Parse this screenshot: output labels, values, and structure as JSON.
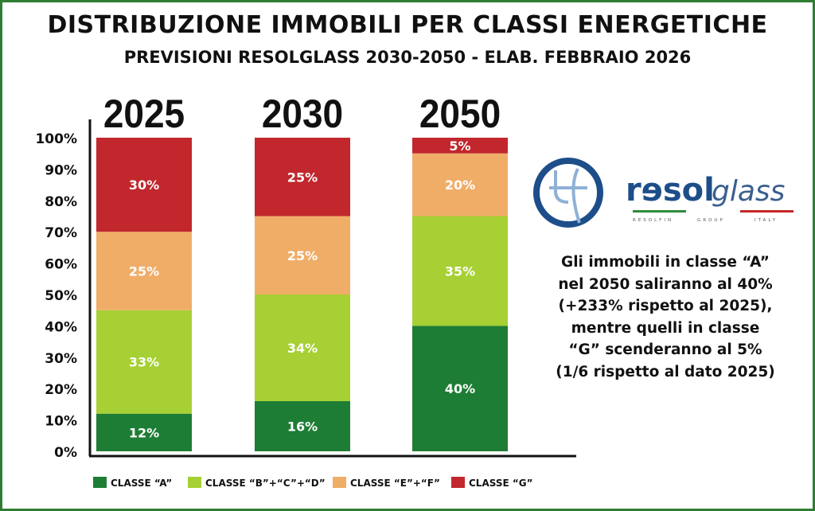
{
  "chart_data": {
    "type": "bar",
    "stacked": true,
    "title": "DISTRIBUZIONE IMMOBILI PER CLASSI ENERGETICHE",
    "subtitle": "PREVISIONI RESOLGLASS 2030-2050 - ELAB. FEBBRAIO 2026",
    "categories": [
      "2025",
      "2030",
      "2050"
    ],
    "ylim": [
      0,
      100
    ],
    "yticks": [
      "0%",
      "10%",
      "20%",
      "30%",
      "40%",
      "50%",
      "60%",
      "70%",
      "80%",
      "90%",
      "100%"
    ],
    "grid": false,
    "legend_position": "bottom",
    "series": [
      {
        "name": "CLASSE “A”",
        "color": "#1e7d34",
        "values": [
          12,
          16,
          40
        ],
        "labels": [
          "12%",
          "16%",
          "40%"
        ]
      },
      {
        "name": "CLASSE “B”+“C”+“D”",
        "color": "#a6d033",
        "values": [
          33,
          34,
          35
        ],
        "labels": [
          "33%",
          "34%",
          "35%"
        ]
      },
      {
        "name": "CLASSE “E”+“F”",
        "color": "#f0ad68",
        "values": [
          25,
          25,
          20
        ],
        "labels": [
          "25%",
          "25%",
          "20%"
        ]
      },
      {
        "name": "CLASSE “G”",
        "color": "#c1272d",
        "values": [
          30,
          25,
          5
        ],
        "labels": [
          "30%",
          "25%",
          "5%"
        ]
      }
    ]
  },
  "note": [
    "Gli immobili in classe “A”",
    "nel 2050 saliranno al 40%",
    "(+233% rispetto al 2025),",
    "mentre quelli in classe",
    "“G” scenderanno al 5%",
    "(1/6 rispetto al dato 2025)"
  ],
  "logo": {
    "text_bold": "rɘsol",
    "text_light": "glass",
    "tagline": [
      "RESOLFIN",
      "GROUP",
      "ITALY"
    ]
  }
}
